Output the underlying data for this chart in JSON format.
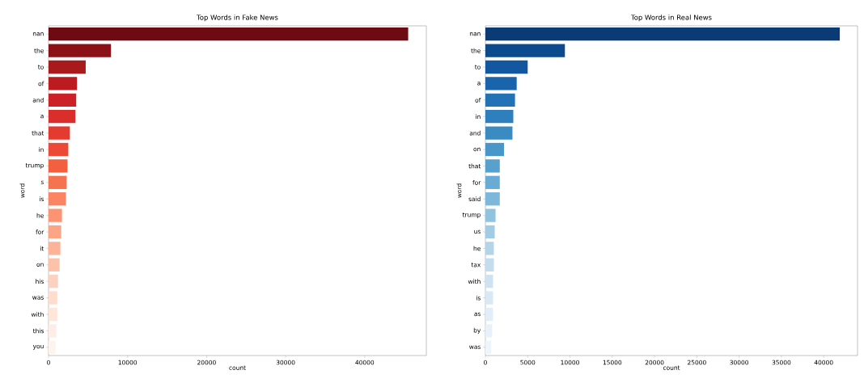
{
  "chart_data": [
    {
      "type": "bar",
      "orientation": "horizontal",
      "title": "Top Words in Fake News",
      "xlabel": "count",
      "ylabel": "word",
      "categories": [
        "nan",
        "the",
        "to",
        "of",
        "and",
        "a",
        "that",
        "in",
        "trump",
        "s",
        "is",
        "he",
        "for",
        "it",
        "on",
        "his",
        "was",
        "with",
        "this",
        "you"
      ],
      "values": [
        45500,
        7900,
        4700,
        3600,
        3500,
        3400,
        2700,
        2500,
        2400,
        2300,
        2200,
        1700,
        1600,
        1500,
        1400,
        1200,
        1100,
        1100,
        1000,
        900
      ],
      "colors": [
        "#6d0a12",
        "#8b1117",
        "#a81a1c",
        "#bc1b20",
        "#cb2127",
        "#d92e2b",
        "#e33b2f",
        "#ec4a36",
        "#f3603f",
        "#f6734f",
        "#fb8464",
        "#fc9474",
        "#fca486",
        "#fcb499",
        "#fcc3ab",
        "#fdd1bf",
        "#fedcce",
        "#fee6da",
        "#feede6",
        "#fff3ee"
      ],
      "xlim": [
        0,
        47800
      ],
      "xticks": [
        0,
        10000,
        20000,
        30000,
        40000
      ]
    },
    {
      "type": "bar",
      "orientation": "horizontal",
      "title": "Top Words in Real News",
      "xlabel": "count",
      "ylabel": "word",
      "categories": [
        "nan",
        "the",
        "to",
        "a",
        "of",
        "in",
        "and",
        "on",
        "that",
        "for",
        "said",
        "trump",
        "us",
        "he",
        "tax",
        "with",
        "is",
        "as",
        "by",
        "was"
      ],
      "values": [
        41900,
        9400,
        5000,
        3700,
        3500,
        3300,
        3200,
        2200,
        1700,
        1700,
        1700,
        1200,
        1100,
        1000,
        1000,
        900,
        900,
        900,
        800,
        700
      ],
      "colors": [
        "#0b3b74",
        "#0d4a8d",
        "#12579f",
        "#1a64ab",
        "#2472b6",
        "#2f7fbe",
        "#3b8bc3",
        "#4997c9",
        "#58a1cf",
        "#69abd5",
        "#7db7da",
        "#91c3df",
        "#a3cce4",
        "#b4d4e8",
        "#c3dcee",
        "#cfe2f2",
        "#d9e8f5",
        "#e1edf8",
        "#e8f1fa",
        "#eef5fc"
      ],
      "xlim": [
        0,
        44000
      ],
      "xticks": [
        0,
        5000,
        10000,
        15000,
        20000,
        25000,
        30000,
        35000,
        40000
      ]
    }
  ]
}
